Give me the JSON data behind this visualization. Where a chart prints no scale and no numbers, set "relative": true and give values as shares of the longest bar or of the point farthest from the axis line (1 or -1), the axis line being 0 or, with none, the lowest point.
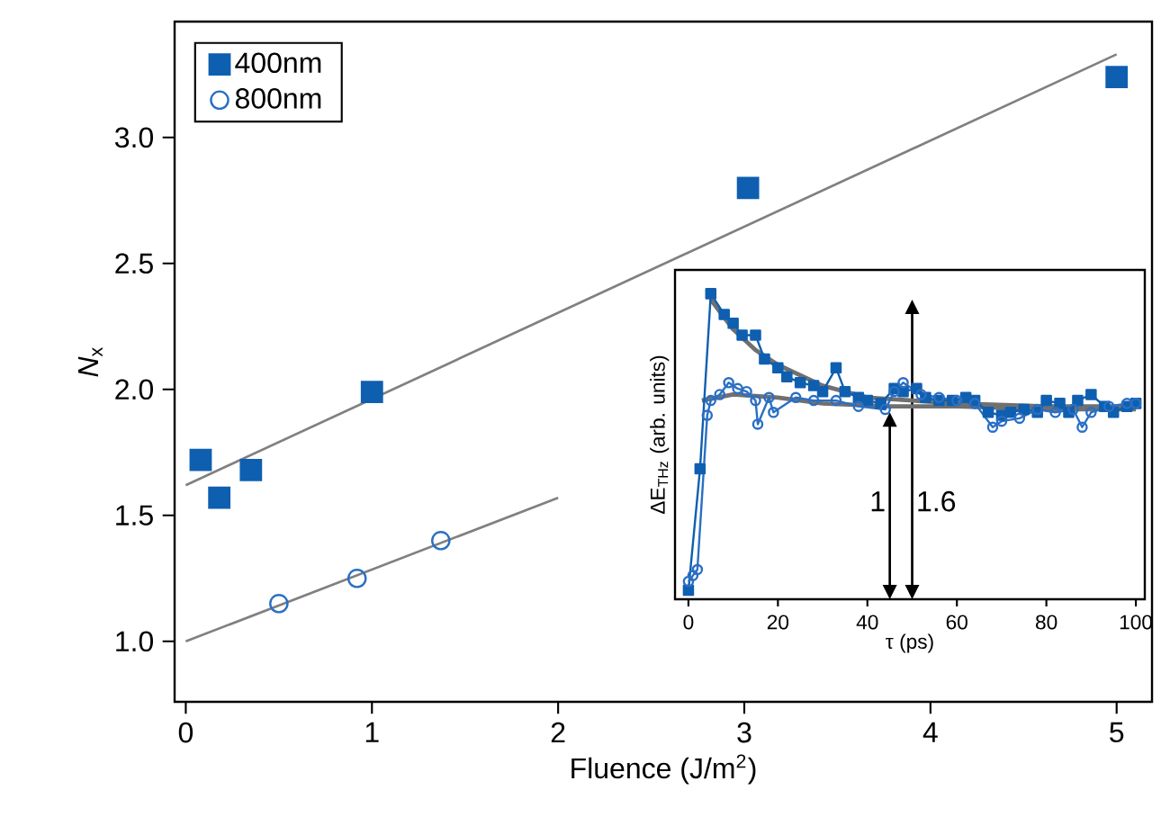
{
  "chart_data": [
    {
      "type": "scatter",
      "xlabel": "Fluence (J/m$^{2}$)",
      "ylabel": "*N*$_{x}$",
      "xlim": [
        -0.06,
        5.19
      ],
      "ylim": [
        0.76,
        3.46
      ],
      "xticks": [
        0,
        1,
        2,
        3,
        4,
        5
      ],
      "yticks": [
        {
          "value": 1,
          "label": "1.0"
        },
        {
          "value": 1.5,
          "label": "1.5"
        },
        {
          "value": 2,
          "label": "2.0"
        },
        {
          "value": 2.5,
          "label": "2.5"
        },
        {
          "value": 3,
          "label": "3.0"
        }
      ],
      "legend": "top left",
      "series": [
        {
          "name": "400nm",
          "marker": "square",
          "color": "#0f5fb0",
          "x": [
            0.08,
            0.18,
            0.35,
            1.0,
            3.02,
            5.0
          ],
          "values": [
            1.72,
            1.57,
            1.68,
            1.99,
            2.8,
            3.24
          ]
        },
        {
          "name": "800nm",
          "marker": "circle",
          "color": "#2a6fc4",
          "x": [
            0.5,
            0.92,
            1.37
          ],
          "values": [
            1.15,
            1.25,
            1.4
          ]
        },
        {
          "type": "line",
          "marker": "none",
          "color": "#808080",
          "x": [
            0,
            5.0
          ],
          "values": [
            1.62,
            3.33
          ]
        },
        {
          "type": "line",
          "marker": "none",
          "color": "#808080",
          "x": [
            0,
            2.0
          ],
          "values": [
            1.0,
            1.57
          ]
        }
      ]
    },
    {
      "type": "line",
      "xlabel": "τ (ps)",
      "ylabel": "ΔE$_{THz}$ (arb. units)",
      "relative": true,
      "xlim": [
        -3,
        102
      ],
      "xticks": [
        0,
        20,
        40,
        60,
        80,
        100
      ],
      "annotations": [
        "1",
        "1.6"
      ],
      "series": [
        {
          "type": "line",
          "marker": "none",
          "color": "#707070",
          "x": [
            5,
            10,
            15,
            20,
            30,
            40,
            50,
            60,
            80,
            100
          ],
          "values": [
            0.98,
            0.88,
            0.81,
            0.76,
            0.69,
            0.65,
            0.64,
            0.63,
            0.62,
            0.62
          ]
        },
        {
          "type": "line",
          "marker": "none",
          "color": "#707070",
          "x": [
            3,
            10,
            20,
            30,
            45,
            60,
            80,
            100
          ],
          "values": [
            0.64,
            0.66,
            0.65,
            0.63,
            0.62,
            0.62,
            0.61,
            0.61
          ]
        },
        {
          "marker": "square",
          "color": "#0f5fb0",
          "x": [
            0,
            2.6,
            5,
            8,
            10,
            12,
            15,
            17,
            20,
            22,
            25,
            28,
            30,
            33,
            35,
            38,
            40,
            43,
            46,
            48,
            51,
            53,
            56,
            59,
            62,
            64,
            67,
            70,
            72,
            75,
            78,
            80,
            83,
            85,
            87,
            90,
            93,
            95,
            98,
            100
          ],
          "values": [
            0.0,
            0.41,
            1.0,
            0.93,
            0.9,
            0.86,
            0.86,
            0.78,
            0.75,
            0.72,
            0.7,
            0.69,
            0.67,
            0.75,
            0.67,
            0.65,
            0.64,
            0.63,
            0.68,
            0.67,
            0.68,
            0.65,
            0.64,
            0.64,
            0.65,
            0.64,
            0.6,
            0.59,
            0.6,
            0.61,
            0.6,
            0.64,
            0.63,
            0.6,
            0.64,
            0.66,
            0.62,
            0.6,
            0.62,
            0.63
          ]
        },
        {
          "marker": "circle",
          "color": "#2a6fc4",
          "x": [
            0,
            1,
            2,
            4.2,
            5,
            7,
            9,
            11,
            13,
            15,
            15.5,
            18,
            19,
            24,
            28,
            33,
            38,
            44,
            46,
            48,
            52,
            56,
            60,
            64,
            68,
            70,
            74,
            78,
            82,
            86,
            88,
            90,
            94,
            98,
            100
          ],
          "values": [
            0.03,
            0.05,
            0.07,
            0.59,
            0.64,
            0.66,
            0.7,
            0.68,
            0.67,
            0.64,
            0.56,
            0.65,
            0.6,
            0.65,
            0.64,
            0.64,
            0.62,
            0.61,
            0.67,
            0.7,
            0.66,
            0.65,
            0.64,
            0.63,
            0.55,
            0.57,
            0.58,
            0.61,
            0.6,
            0.61,
            0.55,
            0.6,
            0.62,
            0.63,
            0.63
          ]
        }
      ]
    }
  ]
}
